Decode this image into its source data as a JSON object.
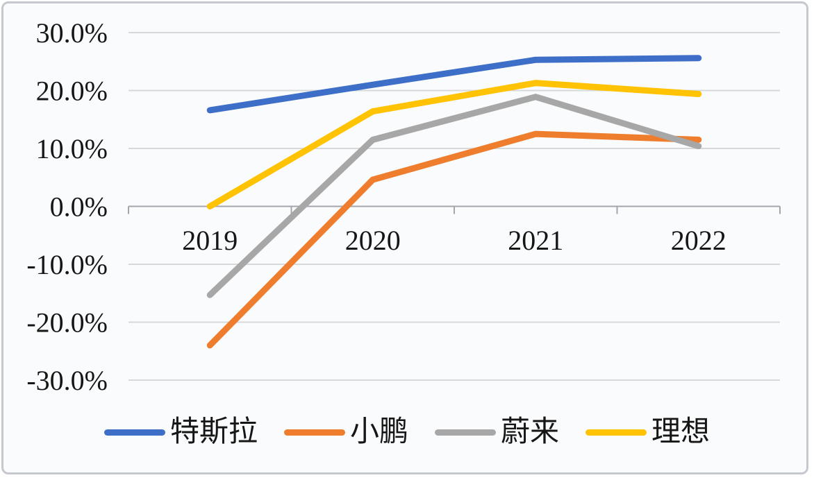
{
  "chart_data": {
    "type": "line",
    "title": "",
    "categories": [
      "2019",
      "2020",
      "2021",
      "2022"
    ],
    "series": [
      {
        "name": "特斯拉",
        "color": "#3e6fc8",
        "values": [
          16.6,
          21.0,
          25.3,
          25.6
        ]
      },
      {
        "name": "小鹏",
        "color": "#ee7d2d",
        "values": [
          -24.0,
          4.6,
          12.5,
          11.5
        ]
      },
      {
        "name": "蔚来",
        "color": "#a7a7a7",
        "values": [
          -15.3,
          11.5,
          18.9,
          10.4
        ]
      },
      {
        "name": "理想",
        "color": "#ffc303",
        "values": [
          0.0,
          16.4,
          21.3,
          19.4
        ]
      }
    ],
    "y_axis": {
      "min": -30,
      "max": 30,
      "tick_values": [
        30,
        20,
        10,
        0,
        -10,
        -20,
        -30
      ],
      "tick_labels": [
        "30.0%",
        "20.0%",
        "10.0%",
        "0.0%",
        "-10.0%",
        "-20.0%",
        "-30.0%"
      ],
      "unit": "percent"
    },
    "x_axis": {
      "position": "zero-line",
      "labels_below_zero": true
    },
    "grid": true,
    "legend_position": "bottom"
  },
  "colors": {
    "background": "#fafbfc",
    "card_border": "#c5c8ce",
    "gridline": "#d6d8da",
    "axis": "#a2a6ab",
    "text": "#161616"
  }
}
